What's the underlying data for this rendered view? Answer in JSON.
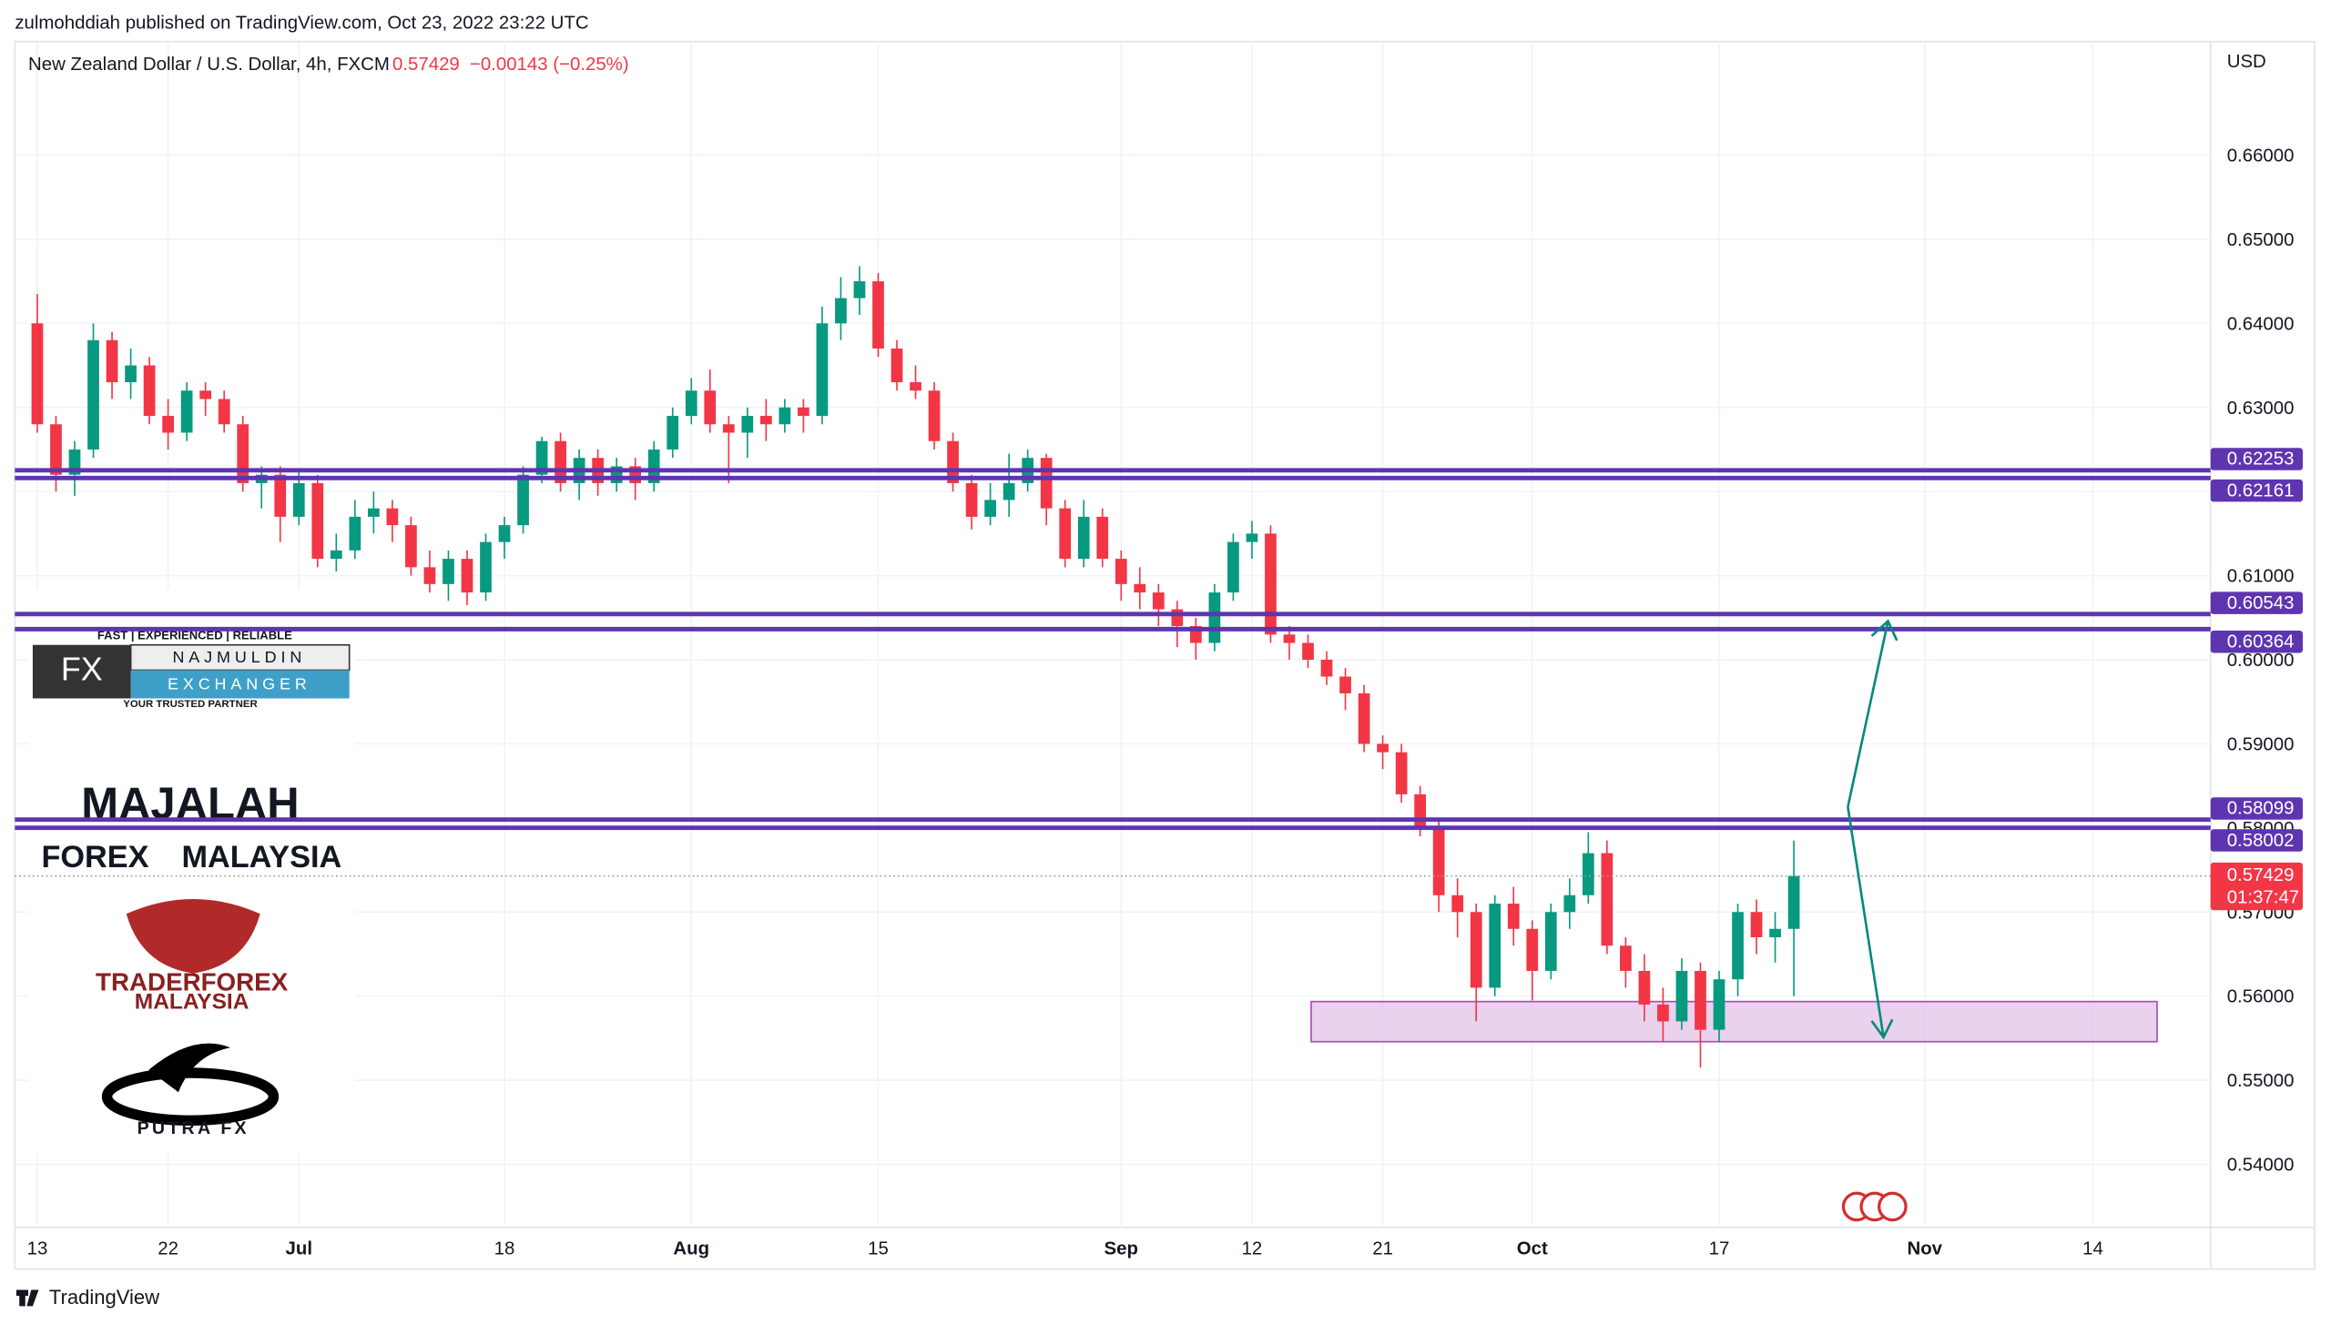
{
  "header": {
    "published": "zulmohddiah published on TradingView.com, Oct 23, 2022 23:22 UTC",
    "symbol": "New Zealand Dollar / U.S. Dollar, 4h, FXCM",
    "change": "−0.00143 (−0.25%)",
    "currency": "USD",
    "countdown": "01:37:47",
    "footer": "TradingView"
  },
  "watermarks": {
    "fx_tagline": "FAST | EXPERIENCED | RELIABLE",
    "fx": "FX",
    "fx_name": "NAJMULDIN",
    "fx_sub": "EXCHANGER",
    "fx_partner": "YOUR TRUSTED PARTNER",
    "majalah": "MAJALAH",
    "forex": "FOREX",
    "malaysia": "MALAYSIA",
    "trader": "TRADERFOREX",
    "trader_country": "MALAYSIA",
    "putra": "PUTRA FX"
  },
  "chart_data": {
    "type": "candlestick",
    "up_color": "#089981",
    "down_color": "#f23645",
    "level_color": "#5e35b1",
    "last_color": "#f23645",
    "last": 0.57429,
    "levels": [
      0.62253,
      0.62161,
      0.60543,
      0.60364,
      0.58099,
      0.58002
    ],
    "ylim": [
      0.5325,
      0.6735
    ],
    "yticks": [
      {
        "value": 0.66,
        "label": "0.66000"
      },
      {
        "value": 0.65,
        "label": "0.65000"
      },
      {
        "value": 0.64,
        "label": "0.64000"
      },
      {
        "value": 0.63,
        "label": "0.63000"
      },
      {
        "value": 0.62,
        "label": "0.62000"
      },
      {
        "value": 0.61,
        "label": "0.61000"
      },
      {
        "value": 0.6,
        "label": "0.60000"
      },
      {
        "value": 0.59,
        "label": "0.59000"
      },
      {
        "value": 0.58,
        "label": "0.58000"
      },
      {
        "value": 0.57,
        "label": "0.57000"
      },
      {
        "value": 0.56,
        "label": "0.56000"
      },
      {
        "value": 0.55,
        "label": "0.55000"
      },
      {
        "value": 0.54,
        "label": "0.54000"
      }
    ],
    "xlim": [
      -1.2,
      116.3
    ],
    "xticks": [
      {
        "value": 0,
        "label": "13"
      },
      {
        "value": 7,
        "label": "22"
      },
      {
        "value": 14,
        "label": "Jul"
      },
      {
        "value": 25,
        "label": "18"
      },
      {
        "value": 35,
        "label": "Aug"
      },
      {
        "value": 45,
        "label": "15"
      },
      {
        "value": 58,
        "label": "Sep"
      },
      {
        "value": 65,
        "label": "12"
      },
      {
        "value": 72,
        "label": "21"
      },
      {
        "value": 80,
        "label": "Oct"
      },
      {
        "value": 90,
        "label": "17"
      },
      {
        "value": 101,
        "label": "Nov"
      },
      {
        "value": 110,
        "label": "14"
      }
    ],
    "open": [
      0.64,
      0.628,
      0.622,
      0.625,
      0.638,
      0.633,
      0.635,
      0.629,
      0.627,
      0.632,
      0.631,
      0.628,
      0.621,
      0.622,
      0.617,
      0.621,
      0.612,
      0.613,
      0.617,
      0.618,
      0.616,
      0.611,
      0.609,
      0.612,
      0.608,
      0.614,
      0.616,
      0.622,
      0.626,
      0.621,
      0.624,
      0.621,
      0.623,
      0.621,
      0.625,
      0.629,
      0.632,
      0.628,
      0.627,
      0.629,
      0.628,
      0.63,
      0.629,
      0.64,
      0.643,
      0.645,
      0.637,
      0.633,
      0.632,
      0.626,
      0.621,
      0.617,
      0.619,
      0.621,
      0.624,
      0.618,
      0.612,
      0.617,
      0.612,
      0.609,
      0.608,
      0.606,
      0.604,
      0.602,
      0.608,
      0.614,
      0.615,
      0.603,
      0.602,
      0.6,
      0.598,
      0.596,
      0.59,
      0.589,
      0.584,
      0.58,
      0.572,
      0.57,
      0.561,
      0.571,
      0.568,
      0.563,
      0.57,
      0.572,
      0.577,
      0.566,
      0.563,
      0.559,
      0.557,
      0.563,
      0.556,
      0.562,
      0.57,
      0.567,
      0.568
    ],
    "high": [
      0.6435,
      0.629,
      0.626,
      0.64,
      0.639,
      0.637,
      0.636,
      0.631,
      0.633,
      0.633,
      0.632,
      0.629,
      0.623,
      0.623,
      0.6225,
      0.622,
      0.615,
      0.619,
      0.62,
      0.619,
      0.617,
      0.613,
      0.613,
      0.613,
      0.615,
      0.617,
      0.623,
      0.6265,
      0.627,
      0.625,
      0.625,
      0.624,
      0.624,
      0.626,
      0.63,
      0.6335,
      0.6345,
      0.629,
      0.63,
      0.631,
      0.631,
      0.631,
      0.642,
      0.6455,
      0.6468,
      0.646,
      0.638,
      0.635,
      0.633,
      0.627,
      0.622,
      0.621,
      0.6245,
      0.625,
      0.6245,
      0.619,
      0.619,
      0.618,
      0.613,
      0.611,
      0.609,
      0.607,
      0.605,
      0.609,
      0.615,
      0.6165,
      0.616,
      0.604,
      0.603,
      0.601,
      0.599,
      0.597,
      0.591,
      0.59,
      0.585,
      0.581,
      0.574,
      0.571,
      0.572,
      0.573,
      0.569,
      0.571,
      0.574,
      0.5795,
      0.5785,
      0.567,
      0.565,
      0.561,
      0.5645,
      0.564,
      0.563,
      0.571,
      0.5715,
      0.57,
      0.5785
    ],
    "low": [
      0.627,
      0.62,
      0.6195,
      0.624,
      0.631,
      0.631,
      0.628,
      0.625,
      0.626,
      0.629,
      0.627,
      0.62,
      0.618,
      0.614,
      0.616,
      0.611,
      0.6105,
      0.612,
      0.615,
      0.614,
      0.61,
      0.608,
      0.607,
      0.6065,
      0.607,
      0.612,
      0.615,
      0.621,
      0.62,
      0.619,
      0.6195,
      0.62,
      0.619,
      0.62,
      0.624,
      0.628,
      0.627,
      0.621,
      0.624,
      0.626,
      0.627,
      0.627,
      0.628,
      0.638,
      0.641,
      0.636,
      0.632,
      0.631,
      0.625,
      0.62,
      0.6155,
      0.616,
      0.617,
      0.62,
      0.616,
      0.611,
      0.611,
      0.611,
      0.607,
      0.606,
      0.604,
      0.6015,
      0.6,
      0.601,
      0.607,
      0.612,
      0.602,
      0.6,
      0.599,
      0.597,
      0.594,
      0.589,
      0.587,
      0.583,
      0.579,
      0.57,
      0.567,
      0.557,
      0.56,
      0.566,
      0.5595,
      0.562,
      0.568,
      0.571,
      0.565,
      0.561,
      0.557,
      0.5545,
      0.556,
      0.5515,
      0.5545,
      0.56,
      0.565,
      0.564,
      0.56
    ],
    "close": [
      0.628,
      0.622,
      0.625,
      0.638,
      0.633,
      0.635,
      0.629,
      0.627,
      0.632,
      0.631,
      0.628,
      0.621,
      0.622,
      0.617,
      0.621,
      0.612,
      0.613,
      0.617,
      0.618,
      0.616,
      0.611,
      0.609,
      0.612,
      0.608,
      0.614,
      0.616,
      0.622,
      0.626,
      0.621,
      0.624,
      0.621,
      0.623,
      0.621,
      0.625,
      0.629,
      0.632,
      0.628,
      0.627,
      0.629,
      0.628,
      0.63,
      0.629,
      0.64,
      0.643,
      0.645,
      0.637,
      0.633,
      0.632,
      0.626,
      0.621,
      0.617,
      0.619,
      0.621,
      0.624,
      0.618,
      0.612,
      0.617,
      0.612,
      0.609,
      0.608,
      0.606,
      0.604,
      0.602,
      0.608,
      0.614,
      0.615,
      0.603,
      0.602,
      0.6,
      0.598,
      0.596,
      0.59,
      0.589,
      0.584,
      0.58,
      0.572,
      0.57,
      0.561,
      0.571,
      0.568,
      0.563,
      0.57,
      0.572,
      0.577,
      0.566,
      0.563,
      0.559,
      0.557,
      0.563,
      0.556,
      0.562,
      0.57,
      0.567,
      0.568,
      0.57429
    ]
  }
}
